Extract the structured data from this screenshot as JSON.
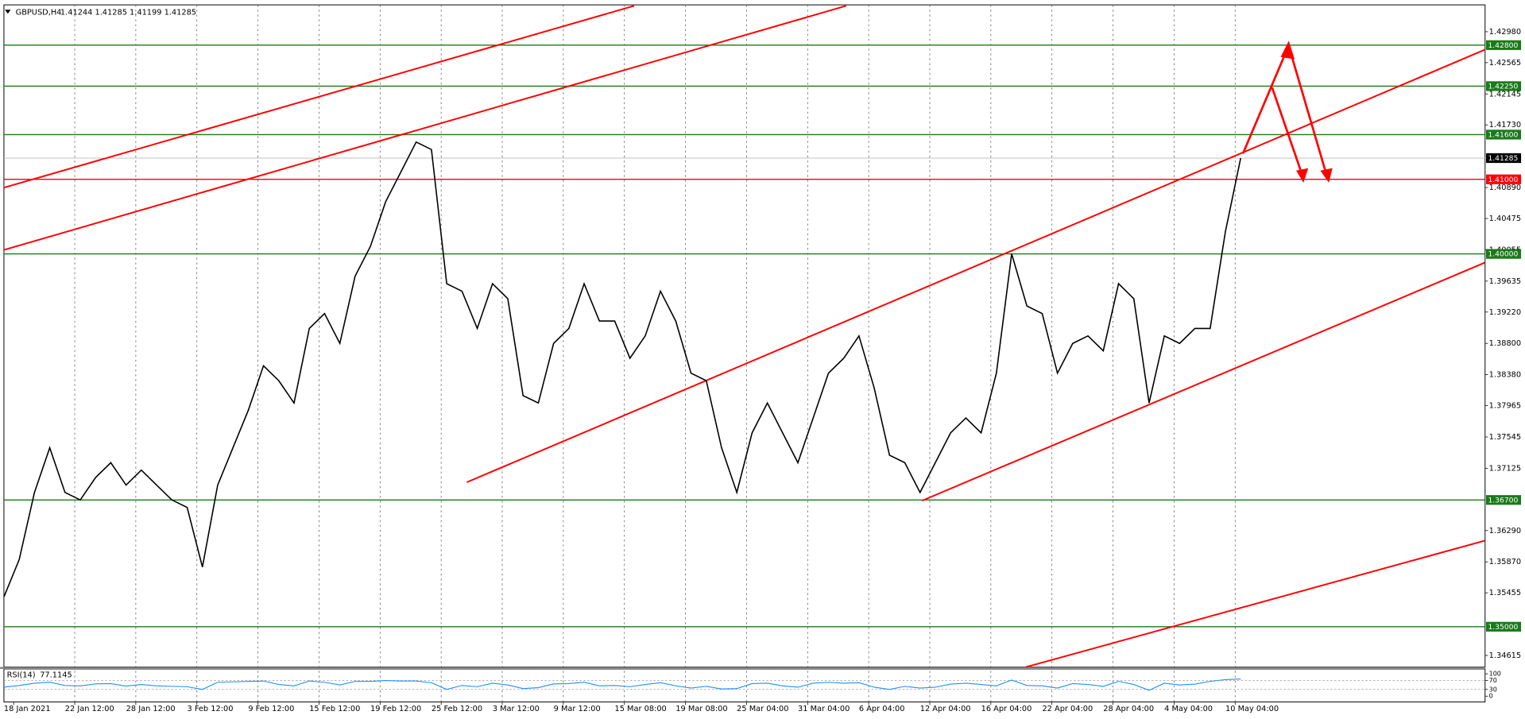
{
  "chart_data": [
    {
      "type": "line",
      "title": "GBPUSD,H4",
      "ohlc_text": "1.41244 1.41285 1.41199 1.41285",
      "color": "#000000",
      "categories": [
        "18 Jan 2021",
        null,
        null,
        null,
        "22 Jan 12:00",
        null,
        null,
        null,
        "28 Jan 12:00",
        null,
        null,
        null,
        "3 Feb 12:00",
        null,
        null,
        null,
        "9 Feb 12:00",
        null,
        null,
        null,
        "15 Feb 12:00",
        null,
        null,
        null,
        "19 Feb 12:00",
        null,
        null,
        null,
        "25 Feb 12:00",
        null,
        null,
        null,
        "3 Mar 12:00",
        null,
        null,
        null,
        "9 Mar 12:00",
        null,
        null,
        null,
        "15 Mar 08:00",
        null,
        null,
        null,
        "19 Mar 08:00",
        null,
        null,
        null,
        "25 Mar 04:00",
        null,
        null,
        null,
        "31 Mar 04:00",
        null,
        null,
        null,
        "6 Apr 04:00",
        null,
        null,
        null,
        "12 Apr 04:00",
        null,
        null,
        null,
        "16 Apr 04:00",
        null,
        null,
        null,
        "22 Apr 04:00",
        null,
        null,
        null,
        "28 Apr 04:00",
        null,
        null,
        null,
        "4 May 04:00",
        null,
        null,
        null,
        "10 May 04:00",
        null
      ],
      "values": [
        1.354,
        1.359,
        1.368,
        1.374,
        1.368,
        1.367,
        1.37,
        1.372,
        1.369,
        1.371,
        1.369,
        1.367,
        1.366,
        1.358,
        1.369,
        1.374,
        1.379,
        1.385,
        1.383,
        1.38,
        1.39,
        1.392,
        1.388,
        1.397,
        1.401,
        1.407,
        1.411,
        1.415,
        1.414,
        1.396,
        1.395,
        1.39,
        1.396,
        1.394,
        1.381,
        1.38,
        1.388,
        1.39,
        1.396,
        1.391,
        1.391,
        1.386,
        1.389,
        1.395,
        1.391,
        1.384,
        1.383,
        1.374,
        1.368,
        1.376,
        1.38,
        1.376,
        1.372,
        1.378,
        1.384,
        1.386,
        1.389,
        1.382,
        1.373,
        1.372,
        1.368,
        1.372,
        1.376,
        1.378,
        1.376,
        1.384,
        1.4,
        1.393,
        1.392,
        1.384,
        1.388,
        1.389,
        1.387,
        1.396,
        1.394,
        1.38,
        1.389,
        1.388,
        1.39,
        1.39,
        1.403,
        1.41285
      ],
      "ylim": [
        1.3446,
        1.4334
      ],
      "yticks": [
        {
          "value": 1.4298,
          "label": "1.42980"
        },
        1.42565,
        1.42145,
        {
          "value": 1.4173,
          "label": "1.41730"
        },
        {
          "value": 1.4089,
          "label": "1.40890"
        },
        1.40475,
        1.40055,
        1.39635,
        {
          "value": 1.3922,
          "label": "1.39220"
        },
        {
          "value": 1.388,
          "label": "1.38800"
        },
        {
          "value": 1.3838,
          "label": "1.38380"
        },
        1.37965,
        1.37545,
        1.37125,
        {
          "value": 1.3629,
          "label": "1.36290"
        },
        {
          "value": 1.3587,
          "label": "1.35870"
        },
        1.35455,
        1.34615
      ],
      "levels": [
        {
          "value": 1.428,
          "label": "1.42800",
          "color": "#1a7a1a"
        },
        {
          "value": 1.4225,
          "label": "1.42250",
          "color": "#1a7a1a"
        },
        {
          "value": 1.416,
          "label": "1.41600",
          "color": "#1a7a1a"
        },
        {
          "value": 1.41,
          "label": "1.41000",
          "color": "#ff0000"
        },
        {
          "value": 1.4,
          "label": "1.40000",
          "color": "#1a7a1a"
        },
        {
          "value": 1.367,
          "label": "1.36700",
          "color": "#1a7a1a"
        },
        {
          "value": 1.35,
          "label": "1.35000",
          "color": "#1a7a1a"
        }
      ],
      "current": {
        "value": 1.41285,
        "label": "1.41285"
      },
      "grid": true
    },
    {
      "type": "line",
      "title": "RSI(14)",
      "current": 77.1145,
      "color": "#1e90ff",
      "values": [
        40,
        48,
        58,
        62,
        48,
        46,
        55,
        56,
        45,
        52,
        46,
        44,
        42,
        30,
        62,
        64,
        66,
        68,
        52,
        46,
        68,
        62,
        50,
        66,
        66,
        70,
        68,
        68,
        60,
        30,
        48,
        42,
        58,
        50,
        34,
        38,
        55,
        56,
        62,
        46,
        48,
        42,
        52,
        60,
        46,
        36,
        44,
        32,
        34,
        56,
        58,
        46,
        40,
        58,
        62,
        58,
        60,
        40,
        30,
        44,
        36,
        40,
        54,
        58,
        52,
        46,
        72,
        48,
        46,
        36,
        56,
        52,
        44,
        66,
        52,
        26,
        58,
        50,
        54,
        66,
        74,
        77.1145
      ],
      "ylim": [
        0,
        100
      ],
      "yticks": [
        0,
        30,
        70,
        100
      ],
      "levels": [
        30,
        70
      ]
    }
  ]
}
